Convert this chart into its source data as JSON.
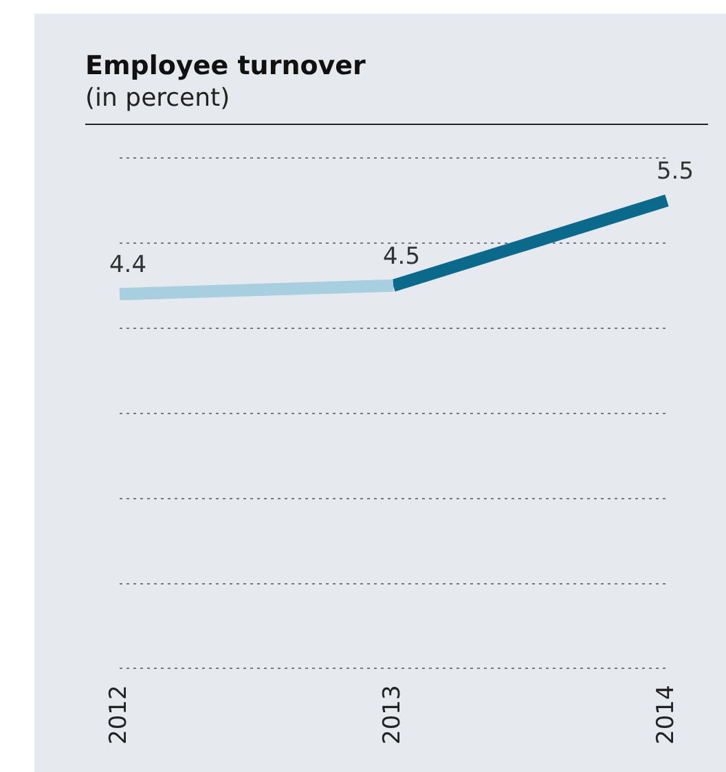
{
  "chart_data": {
    "type": "line",
    "title": "Employee turnover",
    "subtitle": "(in percent)",
    "categories": [
      "2012",
      "2013",
      "2014"
    ],
    "series": [
      {
        "color": "#a8cfe0",
        "values": [
          4.4,
          4.5,
          null
        ],
        "value_labels": [
          "4.4",
          "4.5",
          null
        ]
      },
      {
        "color": "#0b6a8c",
        "values": [
          null,
          4.5,
          5.5
        ],
        "value_labels": [
          null,
          null,
          "5.5"
        ]
      }
    ],
    "ylim": [
      0,
      6
    ],
    "yticks": [
      {
        "value": 0,
        "label": null
      },
      {
        "value": 1,
        "label": null
      },
      {
        "value": 2,
        "label": null
      },
      {
        "value": 3,
        "label": null
      },
      {
        "value": 4,
        "label": null
      },
      {
        "value": 5,
        "label": null
      },
      {
        "value": 6,
        "label": null
      }
    ],
    "grid": "y",
    "tick_labels": "x",
    "marker": "none"
  }
}
